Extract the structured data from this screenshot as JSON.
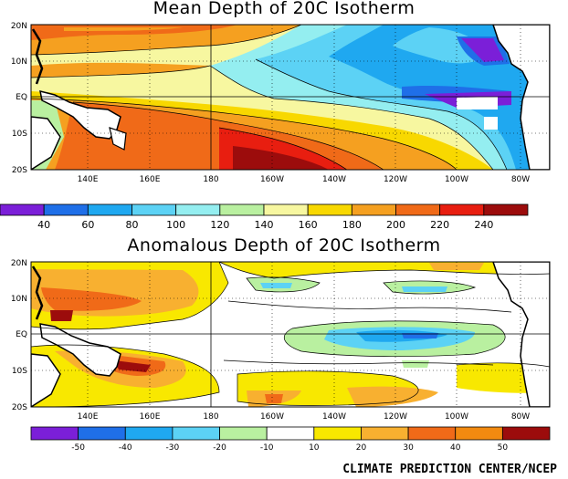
{
  "panels": [
    {
      "title": "Mean Depth of 20C Isotherm",
      "lat_labels": [
        "20N",
        "10N",
        "EQ",
        "10S",
        "20S"
      ],
      "lon_labels": [
        "140E",
        "160E",
        "180",
        "160W",
        "140W",
        "120W",
        "100W",
        "80W"
      ],
      "colorbar": {
        "labels": [
          "40",
          "60",
          "80",
          "100",
          "120",
          "140",
          "160",
          "180",
          "200",
          "220",
          "240"
        ],
        "colors": [
          "#7b1fd8",
          "#1f6fe8",
          "#1fa8f0",
          "#5cd2f5",
          "#94eef0",
          "#b9f0a0",
          "#f7f7a0",
          "#f8d800",
          "#f5a020",
          "#f06a18",
          "#e81e10",
          "#9c0c0c"
        ]
      }
    },
    {
      "title": "Anomalous Depth of 20C Isotherm",
      "lat_labels": [
        "20N",
        "10N",
        "EQ",
        "10S",
        "20S"
      ],
      "lon_labels": [
        "140E",
        "160E",
        "180",
        "160W",
        "140W",
        "120W",
        "100W",
        "80W"
      ],
      "colorbar": {
        "labels": [
          "-50",
          "-40",
          "-30",
          "-20",
          "-10",
          "10",
          "20",
          "30",
          "40",
          "50"
        ],
        "colors": [
          "#7b1fd8",
          "#1f6fe8",
          "#1fa8f0",
          "#5cd2f5",
          "#b9f0a0",
          "#ffffff",
          "#f8e800",
          "#f8b030",
          "#f06a18",
          "#f28a10",
          "#9c0c0c"
        ]
      }
    }
  ],
  "footer": "CLIMATE PREDICTION CENTER/NCEP"
}
